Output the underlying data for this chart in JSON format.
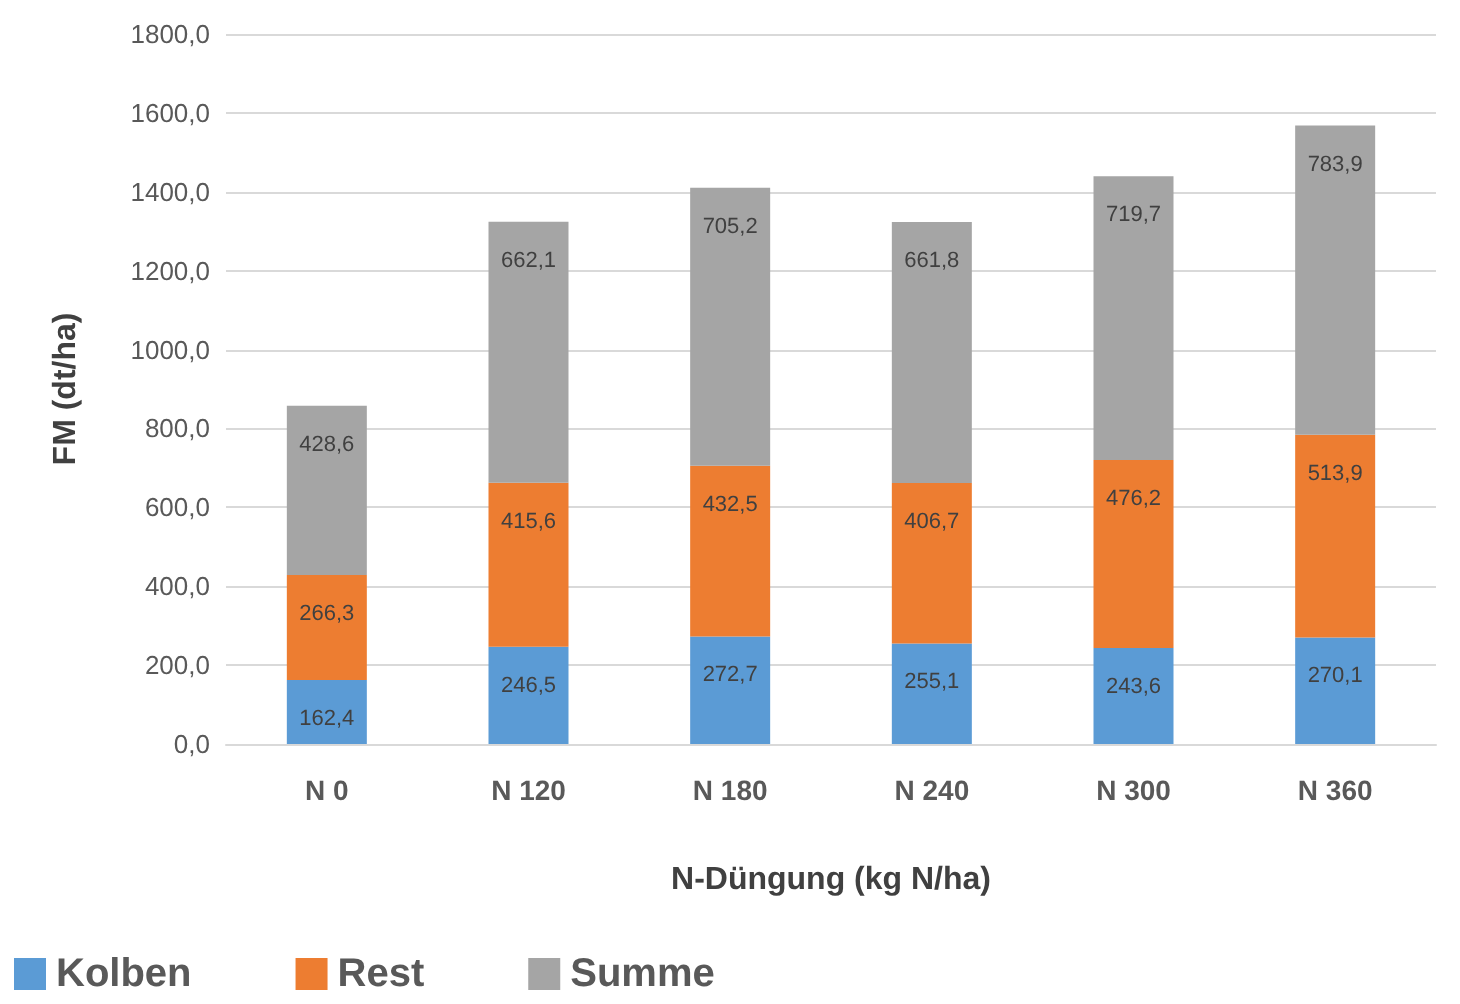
{
  "chart_data": {
    "type": "bar",
    "stacked": true,
    "xlabel": "N-Düngung (kg N/ha)",
    "ylabel": "FM (dt/ha)",
    "categories": [
      "N 0",
      "N 120",
      "N 180",
      "N 240",
      "N 300",
      "N 360"
    ],
    "series": [
      {
        "name": "Kolben",
        "color": "#5b9bd5",
        "values": [
          162.4,
          246.5,
          272.7,
          255.1,
          243.6,
          270.1
        ],
        "value_labels": [
          "162,4",
          "246,5",
          "272,7",
          "255,1",
          "243,6",
          "270,1"
        ]
      },
      {
        "name": "Rest",
        "color": "#ed7d31",
        "values": [
          266.3,
          415.6,
          432.5,
          406.7,
          476.2,
          513.9
        ],
        "value_labels": [
          "266,3",
          "415,6",
          "432,5",
          "406,7",
          "476,2",
          "513,9"
        ]
      },
      {
        "name": "Summe",
        "color": "#a5a5a5",
        "values": [
          428.6,
          662.1,
          705.2,
          661.8,
          719.7,
          783.9
        ],
        "value_labels": [
          "428,6",
          "662,1",
          "705,2",
          "661,8",
          "719,7",
          "783,9"
        ]
      }
    ],
    "ylim": [
      0,
      1800
    ],
    "yticks": [
      {
        "value": 0,
        "label": "0,0"
      },
      {
        "value": 200,
        "label": "200,0"
      },
      {
        "value": 400,
        "label": "400,0"
      },
      {
        "value": 600,
        "label": "600,0"
      },
      {
        "value": 800,
        "label": "800,0"
      },
      {
        "value": 1000,
        "label": "1000,0"
      },
      {
        "value": 1200,
        "label": "1200,0"
      },
      {
        "value": 1400,
        "label": "1400,0"
      },
      {
        "value": 1600,
        "label": "1600,0"
      },
      {
        "value": 1800,
        "label": "1800,0"
      }
    ],
    "grid": "y",
    "legend": "bottom left"
  }
}
